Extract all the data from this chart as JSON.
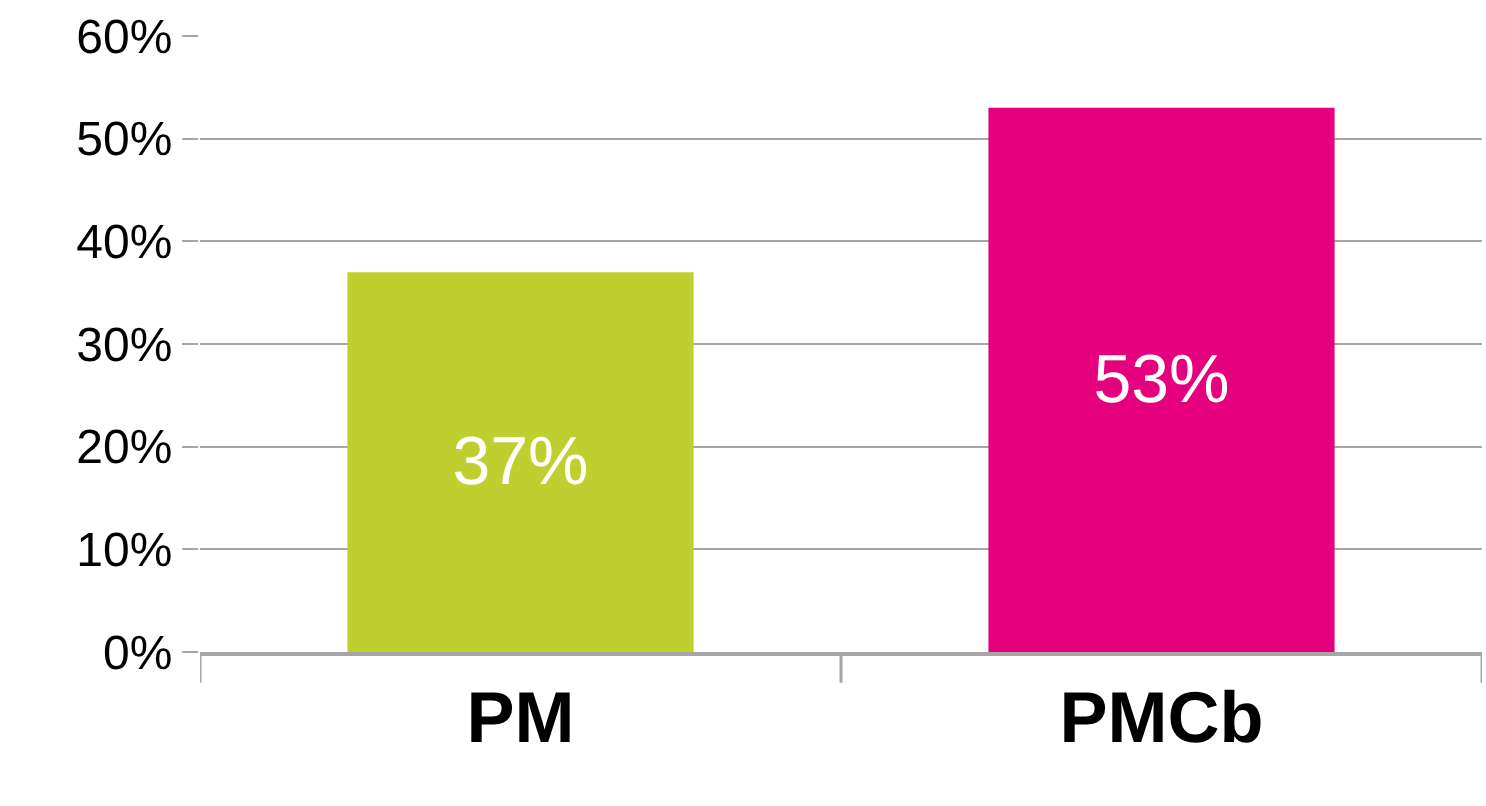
{
  "chart_data": {
    "type": "bar",
    "categories": [
      "PM",
      "PMCb"
    ],
    "values": [
      37,
      53
    ],
    "colors": [
      "#bfcf2f",
      "#e5007e"
    ],
    "value_labels": [
      "37%",
      "53%"
    ],
    "ylim": [
      0,
      60
    ],
    "yticks": [
      {
        "value": 0,
        "label": "0%"
      },
      {
        "value": 10,
        "label": "10%"
      },
      {
        "value": 20,
        "label": "20%"
      },
      {
        "value": 30,
        "label": "30%"
      },
      {
        "value": 40,
        "label": "40%"
      },
      {
        "value": 50,
        "label": "50%"
      },
      {
        "value": 60,
        "label": "60%"
      }
    ],
    "grid": "y",
    "legend": false
  }
}
